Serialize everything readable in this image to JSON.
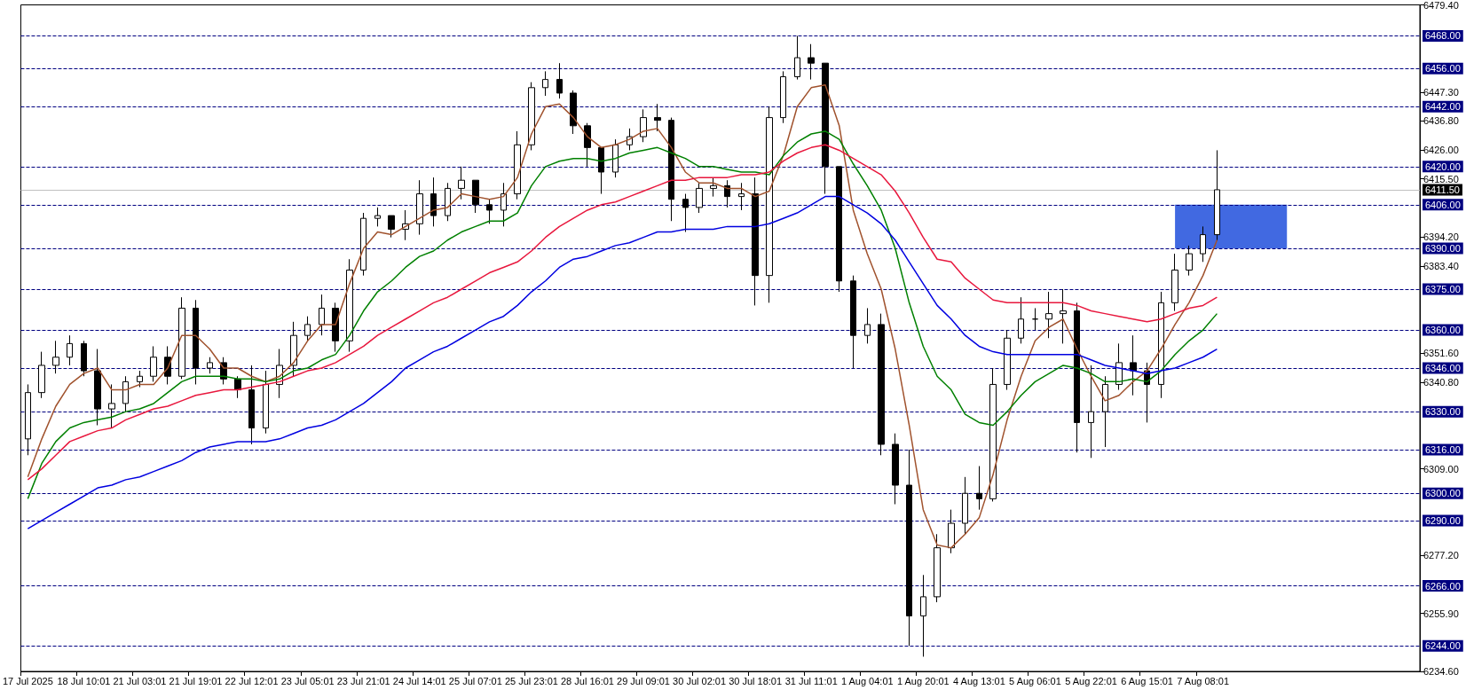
{
  "chart_data": {
    "type": "candlestick",
    "categories": [
      "17 Jul 2025",
      null,
      null,
      null,
      "18 Jul 10:01",
      null,
      null,
      null,
      "21 Jul 03:01",
      null,
      null,
      null,
      "21 Jul 19:01",
      null,
      null,
      null,
      "22 Jul 12:01",
      null,
      null,
      null,
      "23 Jul 05:01",
      null,
      null,
      null,
      "23 Jul 21:01",
      null,
      null,
      null,
      "24 Jul 14:01",
      null,
      null,
      null,
      "25 Jul 07:01",
      null,
      null,
      null,
      "25 Jul 23:01",
      null,
      null,
      null,
      "28 Jul 16:01",
      null,
      null,
      null,
      "29 Jul 09:01",
      null,
      null,
      null,
      "30 Jul 02:01",
      null,
      null,
      null,
      "30 Jul 18:01",
      null,
      null,
      null,
      "31 Jul 11:01",
      null,
      null,
      null,
      "1 Aug 04:01",
      null,
      null,
      null,
      "1 Aug 20:01",
      null,
      null,
      null,
      "4 Aug 13:01",
      null,
      null,
      null,
      "5 Aug 06:01",
      null,
      null,
      null,
      "5 Aug 22:01",
      null,
      null,
      null,
      "6 Aug 15:01",
      null,
      null,
      null,
      "7 Aug 08:01",
      null,
      null,
      null,
      null,
      null,
      null,
      null,
      null,
      null,
      null,
      null,
      null,
      null,
      null,
      null
    ],
    "ohlc": [
      [
        6320,
        6340,
        6314,
        6337
      ],
      [
        6337,
        6352,
        6335,
        6347
      ],
      [
        6347,
        6356,
        6344,
        6350
      ],
      [
        6350,
        6358,
        6347,
        6355
      ],
      [
        6355,
        6356,
        6343,
        6345
      ],
      [
        6345,
        6353,
        6325,
        6331
      ],
      [
        6331,
        6340,
        6324,
        6333
      ],
      [
        6333,
        6343,
        6330,
        6341
      ],
      [
        6341,
        6345,
        6339,
        6343
      ],
      [
        6343,
        6354,
        6341,
        6350
      ],
      [
        6350,
        6354,
        6340,
        6343
      ],
      [
        6343,
        6372,
        6342,
        6368
      ],
      [
        6368,
        6371,
        6340,
        6346
      ],
      [
        6346,
        6350,
        6344,
        6348
      ],
      [
        6348,
        6350,
        6340,
        6342
      ],
      [
        6342,
        6343,
        6335,
        6338
      ],
      [
        6338,
        6347,
        6318,
        6324
      ],
      [
        6324,
        6345,
        6322,
        6340
      ],
      [
        6340,
        6353,
        6335,
        6347
      ],
      [
        6347,
        6363,
        6343,
        6358
      ],
      [
        6358,
        6365,
        6356,
        6362
      ],
      [
        6362,
        6373,
        6358,
        6368
      ],
      [
        6368,
        6370,
        6352,
        6356
      ],
      [
        6356,
        6386,
        6352,
        6382
      ],
      [
        6382,
        6403,
        6380,
        6401
      ],
      [
        6401,
        6405,
        6398,
        6402
      ],
      [
        6402,
        6402,
        6394,
        6397
      ],
      [
        6397,
        6404,
        6393,
        6399
      ],
      [
        6399,
        6415,
        6395,
        6410
      ],
      [
        6410,
        6416,
        6398,
        6402
      ],
      [
        6402,
        6414,
        6400,
        6412
      ],
      [
        6412,
        6420,
        6408,
        6415
      ],
      [
        6415,
        6415,
        6403,
        6406
      ],
      [
        6406,
        6408,
        6399,
        6404
      ],
      [
        6404,
        6414,
        6398,
        6410
      ],
      [
        6410,
        6433,
        6408,
        6428
      ],
      [
        6428,
        6451,
        6426,
        6449
      ],
      [
        6449,
        6455,
        6446,
        6452
      ],
      [
        6452,
        6458,
        6445,
        6447
      ],
      [
        6447,
        6448,
        6432,
        6435
      ],
      [
        6435,
        6436,
        6420,
        6427
      ],
      [
        6427,
        6427,
        6410,
        6418
      ],
      [
        6418,
        6430,
        6416,
        6428
      ],
      [
        6428,
        6434,
        6426,
        6431
      ],
      [
        6431,
        6441,
        6429,
        6438
      ],
      [
        6438,
        6443,
        6433,
        6437
      ],
      [
        6437,
        6438,
        6400,
        6408
      ],
      [
        6408,
        6410,
        6396,
        6405
      ],
      [
        6405,
        6414,
        6403,
        6412
      ],
      [
        6412,
        6416,
        6409,
        6413
      ],
      [
        6413,
        6415,
        6405,
        6409
      ],
      [
        6409,
        6414,
        6404,
        6410
      ],
      [
        6410,
        6416,
        6369,
        6380
      ],
      [
        6380,
        6442,
        6370,
        6438
      ],
      [
        6438,
        6455,
        6436,
        6453
      ],
      [
        6453,
        6468,
        6452,
        6460
      ],
      [
        6460,
        6465,
        6452,
        6458
      ],
      [
        6458,
        6458,
        6410,
        6420
      ],
      [
        6420,
        6420,
        6374,
        6378
      ],
      [
        6378,
        6380,
        6346,
        6358
      ],
      [
        6358,
        6368,
        6355,
        6362
      ],
      [
        6362,
        6366,
        6314,
        6318
      ],
      [
        6318,
        6322,
        6296,
        6303
      ],
      [
        6303,
        6316,
        6244,
        6255
      ],
      [
        6255,
        6270,
        6240,
        6262
      ],
      [
        6262,
        6285,
        6260,
        6280
      ],
      [
        6280,
        6294,
        6278,
        6289
      ],
      [
        6289,
        6306,
        6285,
        6300
      ],
      [
        6300,
        6310,
        6294,
        6298
      ],
      [
        6298,
        6346,
        6297,
        6340
      ],
      [
        6340,
        6360,
        6338,
        6357
      ],
      [
        6357,
        6372,
        6355,
        6364
      ],
      [
        6364,
        6368,
        6360,
        6364
      ],
      [
        6364,
        6374,
        6357,
        6366
      ],
      [
        6366,
        6375,
        6355,
        6367
      ],
      [
        6367,
        6370,
        6315,
        6326
      ],
      [
        6326,
        6347,
        6313,
        6330
      ],
      [
        6330,
        6343,
        6317,
        6340
      ],
      [
        6340,
        6355,
        6338,
        6348
      ],
      [
        6348,
        6358,
        6336,
        6345
      ],
      [
        6345,
        6348,
        6326,
        6340
      ],
      [
        6340,
        6374,
        6335,
        6370
      ],
      [
        6370,
        6388,
        6367,
        6382
      ],
      [
        6382,
        6391,
        6380,
        6388
      ],
      [
        6388,
        6398,
        6385,
        6395
      ],
      [
        6395,
        6426,
        6393,
        6411.5
      ],
      null,
      null,
      null,
      null,
      null,
      null,
      null,
      null,
      null,
      null,
      null,
      null,
      null,
      null
    ],
    "series": [
      {
        "type": "line",
        "color": "#a0522d",
        "values": [
          6306,
          6320,
          6332,
          6340,
          6344,
          6346,
          6338,
          6338,
          6340,
          6340,
          6346,
          6358,
          6358,
          6353,
          6346,
          6346,
          6343,
          6341,
          6343,
          6348,
          6356,
          6362,
          6362,
          6377,
          6390,
          6396,
          6395,
          6398,
          6401,
          6404,
          6405,
          6410,
          6409,
          6408,
          6409,
          6416,
          6432,
          6442,
          6443,
          6438,
          6431,
          6427,
          6428,
          6430,
          6433,
          6434,
          6427,
          6418,
          6414,
          6414,
          6412,
          6412,
          6409,
          6411,
          6424,
          6442,
          6449,
          6450,
          6435,
          6404,
          6388,
          6375,
          6353,
          6325,
          6294,
          6281,
          6280,
          6285,
          6291,
          6307,
          6327,
          6343,
          6356,
          6361,
          6364,
          6353,
          6343,
          6334,
          6336,
          6341,
          6345,
          6353,
          6362,
          6370,
          6380,
          6393,
          null,
          null,
          null,
          null,
          null,
          null,
          null,
          null,
          null,
          null,
          null,
          null,
          null,
          null
        ]
      },
      {
        "type": "line",
        "color": "#008000",
        "values": [
          6298,
          6311,
          6319,
          6324,
          6326,
          6327,
          6328,
          6330,
          6331,
          6333,
          6337,
          6341,
          6343,
          6343,
          6343,
          6342,
          6342,
          6341,
          6342,
          6345,
          6346,
          6349,
          6351,
          6358,
          6367,
          6374,
          6378,
          6383,
          6387,
          6389,
          6393,
          6396,
          6398,
          6400,
          6400,
          6403,
          6413,
          6420,
          6422,
          6423,
          6423,
          6422,
          6423,
          6425,
          6426,
          6427,
          6425,
          6423,
          6420,
          6420,
          6419,
          6418,
          6418,
          6417,
          6424,
          6429,
          6432,
          6433,
          6430,
          6421,
          6413,
          6404,
          6390,
          6370,
          6354,
          6343,
          6338,
          6329,
          6326,
          6325,
          6330,
          6336,
          6341,
          6344,
          6347,
          6346,
          6344,
          6341,
          6341,
          6342,
          6341,
          6345,
          6351,
          6356,
          6360,
          6366,
          null,
          null,
          null,
          null,
          null,
          null,
          null,
          null,
          null,
          null,
          null,
          null,
          null,
          null
        ]
      },
      {
        "type": "line",
        "color": "#e8173d",
        "values": [
          6305,
          6309,
          6314,
          6319,
          6321,
          6323,
          6324,
          6327,
          6329,
          6331,
          6332,
          6334,
          6336,
          6337,
          6338,
          6338,
          6339,
          6340,
          6341,
          6343,
          6345,
          6346,
          6348,
          6351,
          6354,
          6358,
          6361,
          6364,
          6367,
          6370,
          6372,
          6375,
          6378,
          6381,
          6383,
          6385,
          6389,
          6394,
          6398,
          6401,
          6404,
          6406,
          6407,
          6409,
          6411,
          6413,
          6415,
          6415,
          6416,
          6416,
          6416,
          6417,
          6417,
          6418,
          6422,
          6425,
          6427,
          6428,
          6426,
          6423,
          6420,
          6417,
          6411,
          6403,
          6394,
          6386,
          6385,
          6379,
          6375,
          6371,
          6370,
          6370,
          6370,
          6370,
          6370,
          6369,
          6367,
          6366,
          6365,
          6364,
          6363,
          6364,
          6366,
          6368,
          6369,
          6372,
          null,
          null,
          null,
          null,
          null,
          null,
          null,
          null,
          null,
          null,
          null,
          null,
          null,
          null
        ]
      },
      {
        "type": "line",
        "color": "#0000e0",
        "values": [
          6287,
          6290,
          6293,
          6296,
          6299,
          6302,
          6303,
          6305,
          6306,
          6308,
          6310,
          6312,
          6315,
          6317,
          6318,
          6319,
          6319,
          6319,
          6320,
          6322,
          6324,
          6325,
          6327,
          6330,
          6333,
          6337,
          6341,
          6346,
          6349,
          6352,
          6354,
          6357,
          6360,
          6363,
          6365,
          6369,
          6374,
          6378,
          6383,
          6386,
          6387,
          6389,
          6391,
          6392,
          6394,
          6396,
          6396,
          6397,
          6397,
          6397,
          6398,
          6398,
          6398,
          6399,
          6401,
          6403,
          6406,
          6409,
          6409,
          6406,
          6403,
          6399,
          6393,
          6385,
          6377,
          6369,
          6364,
          6358,
          6354,
          6352,
          6351,
          6351,
          6351,
          6351,
          6351,
          6351,
          6349,
          6347,
          6346,
          6345,
          6344,
          6345,
          6346,
          6348,
          6350,
          6353,
          null,
          null,
          null,
          null,
          null,
          null,
          null,
          null,
          null,
          null,
          null,
          null,
          null,
          null
        ]
      }
    ],
    "ylim": [
      6234.6,
      6479.4
    ],
    "yticks": [
      {
        "value": 6479.4,
        "label": "6479.40"
      },
      {
        "value": 6447.3,
        "label": "6447.30"
      },
      {
        "value": 6436.8,
        "label": "6436.80"
      },
      {
        "value": 6426,
        "label": "6426.00"
      },
      {
        "value": 6415.5,
        "label": "6415.50"
      },
      {
        "value": 6394.2,
        "label": "6394.20"
      },
      {
        "value": 6383.4,
        "label": "6383.40"
      },
      {
        "value": 6351.6,
        "label": "6351.60"
      },
      {
        "value": 6340.8,
        "label": "6340.80"
      },
      {
        "value": 6309,
        "label": "6309.00"
      },
      {
        "value": 6277.2,
        "label": "6277.20"
      },
      {
        "value": 6255.9,
        "label": "6255.90"
      },
      {
        "value": 6234.6,
        "label": "6234.60"
      }
    ],
    "ref_lines": [
      {
        "axis": "y",
        "value": 6468,
        "label": "6468.00",
        "color": "#000080",
        "line_style": "dashed"
      },
      {
        "axis": "y",
        "value": 6456,
        "label": "6456.00",
        "color": "#000080",
        "line_style": "dashed"
      },
      {
        "axis": "y",
        "value": 6442,
        "label": "6442.00",
        "color": "#000080",
        "line_style": "dashed"
      },
      {
        "axis": "y",
        "value": 6420,
        "label": "6420.00",
        "color": "#000080",
        "line_style": "dashed"
      },
      {
        "axis": "y",
        "value": 6406,
        "label": "6406.00",
        "color": "#000080",
        "line_style": "dashed"
      },
      {
        "axis": "y",
        "value": 6390,
        "label": "6390.00",
        "color": "#000080",
        "line_style": "dashed"
      },
      {
        "axis": "y",
        "value": 6375,
        "label": "6375.00",
        "color": "#000080",
        "line_style": "dashed"
      },
      {
        "axis": "y",
        "value": 6360,
        "label": "6360.00",
        "color": "#000080",
        "line_style": "dashed"
      },
      {
        "axis": "y",
        "value": 6346,
        "label": "6346.00",
        "color": "#000080",
        "line_style": "dashed"
      },
      {
        "axis": "y",
        "value": 6330,
        "label": "6330.00",
        "color": "#000080",
        "line_style": "dashed"
      },
      {
        "axis": "y",
        "value": 6316,
        "label": "6316.00",
        "color": "#000080",
        "line_style": "dashed"
      },
      {
        "axis": "y",
        "value": 6300,
        "label": "6300.00",
        "color": "#000080",
        "line_style": "dashed"
      },
      {
        "axis": "y",
        "value": 6290,
        "label": "6290.00",
        "color": "#000080",
        "line_style": "dashed"
      },
      {
        "axis": "y",
        "value": 6266,
        "label": "6266.00",
        "color": "#000080",
        "line_style": "dashed"
      },
      {
        "axis": "y",
        "value": 6244,
        "label": "6244.00",
        "color": "#000080",
        "line_style": "dashed"
      },
      {
        "axis": "y",
        "value": 6411.5,
        "label": "6411.50",
        "color": "#c0c0c0",
        "line_style": "solid"
      }
    ],
    "bands": [
      {
        "axis": "y",
        "from": 6390,
        "to": 6406,
        "color": "#4169e1"
      }
    ]
  }
}
